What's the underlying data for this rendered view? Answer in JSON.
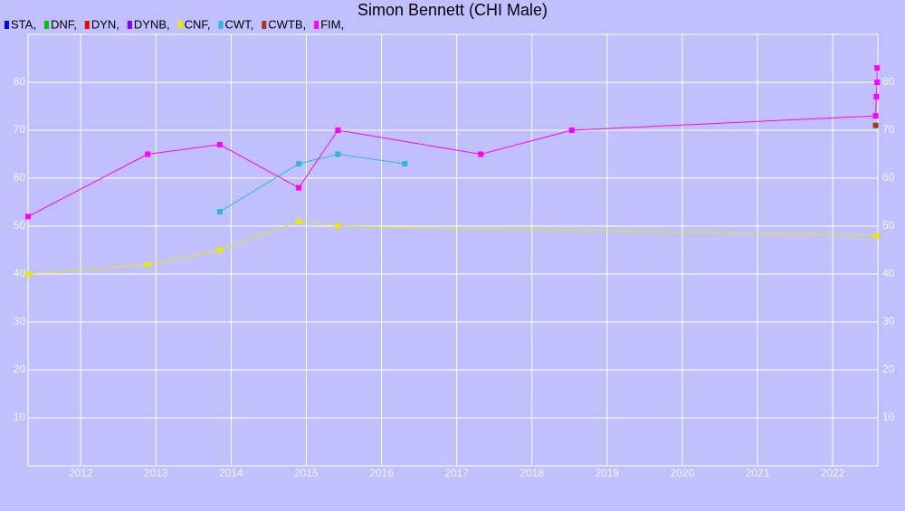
{
  "chart_data": {
    "type": "line",
    "title": "Simon Bennett (CHI Male)",
    "xlim": [
      2011.3,
      2022.6
    ],
    "xticks": [
      2012,
      2013,
      2014,
      2015,
      2016,
      2017,
      2018,
      2019,
      2020,
      2021,
      2022
    ],
    "ylim": [
      0,
      90
    ],
    "yticks": [
      10,
      20,
      30,
      40,
      50,
      60,
      70,
      80
    ],
    "grid": true,
    "series": [
      {
        "name": "STA,",
        "color": "#0000ff",
        "x": [],
        "values": []
      },
      {
        "name": "DNF,",
        "color": "#00c000",
        "x": [],
        "values": []
      },
      {
        "name": "DYN,",
        "color": "#ff0000",
        "x": [],
        "values": []
      },
      {
        "name": "DYNB,",
        "color": "#8000ff",
        "x": [],
        "values": []
      },
      {
        "name": "CNF,",
        "color": "#e8e800",
        "x": [
          2011.3,
          2012.89,
          2013.85,
          2014.9,
          2015.42,
          2022.58
        ],
        "values": [
          40,
          42,
          45,
          51,
          50,
          48
        ]
      },
      {
        "name": "CWT,",
        "color": "#30b8d8",
        "x": [
          2013.85,
          2014.9,
          2015.42,
          2016.31
        ],
        "values": [
          53,
          63,
          65,
          63
        ]
      },
      {
        "name": "CWTB,",
        "color": "#a04010",
        "x": [
          2022.57
        ],
        "values": [
          71
        ]
      },
      {
        "name": "FIM,",
        "color": "#ff00ff",
        "x": [
          2011.3,
          2012.89,
          2013.85,
          2014.9,
          2015.42,
          2017.32,
          2018.53,
          2022.57,
          2022.58,
          2022.59,
          2022.59
        ],
        "values": [
          52,
          65,
          67,
          58,
          70,
          65,
          70,
          73,
          77,
          80,
          83
        ]
      }
    ]
  }
}
